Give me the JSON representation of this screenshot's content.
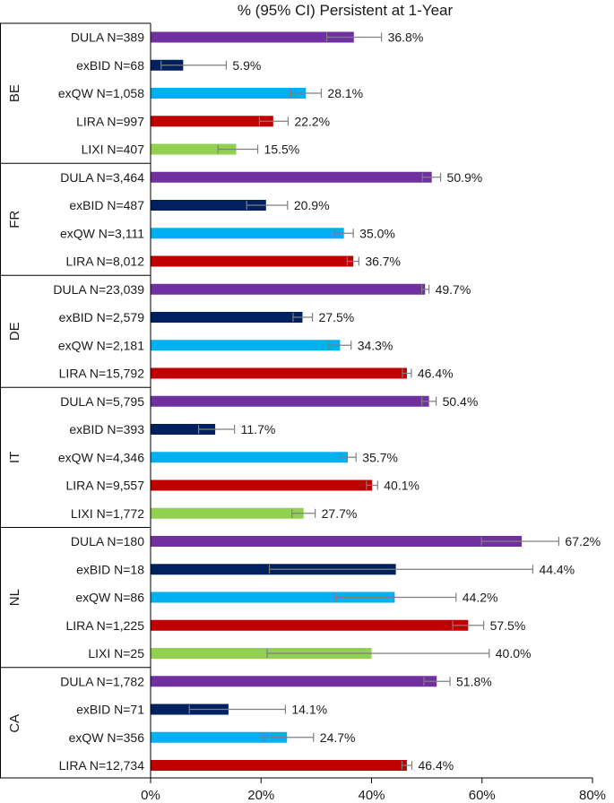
{
  "chart_data": {
    "type": "bar",
    "orientation": "horizontal",
    "title": "% (95% CI) Persistent at 1-Year",
    "xlabel": "",
    "ylabel": "",
    "xlim": [
      0,
      80
    ],
    "x_ticks": [
      0,
      20,
      40,
      60,
      80
    ],
    "x_tick_labels": [
      "0%",
      "20%",
      "40%",
      "60%",
      "80%"
    ],
    "grid": false,
    "legend": "none",
    "colors": {
      "DULA": "#7030a0",
      "exBID": "#002060",
      "exQW": "#00b0f0",
      "LIRA": "#c00000",
      "LIXI": "#92d050",
      "error_bar": "#7f7f7f"
    },
    "groups": [
      {
        "name": "BE",
        "bars": [
          {
            "drug": "DULA",
            "label": "DULA N=389",
            "value": 36.8,
            "value_label": "36.8%",
            "ci": [
              31.9,
              41.8
            ]
          },
          {
            "drug": "exBID",
            "label": "exBID N=68",
            "value": 5.9,
            "value_label": "5.9%",
            "ci": [
              1.9,
              13.7
            ]
          },
          {
            "drug": "exQW",
            "label": "exQW N=1,058",
            "value": 28.1,
            "value_label": "28.1%",
            "ci": [
              25.4,
              30.9
            ]
          },
          {
            "drug": "LIRA",
            "label": "LIRA N=997",
            "value": 22.2,
            "value_label": "22.2%",
            "ci": [
              19.7,
              24.9
            ]
          },
          {
            "drug": "LIXI",
            "label": "LIXI N=407",
            "value": 15.5,
            "value_label": "15.5%",
            "ci": [
              12.2,
              19.4
            ]
          }
        ]
      },
      {
        "name": "FR",
        "bars": [
          {
            "drug": "DULA",
            "label": "DULA N=3,464",
            "value": 50.9,
            "value_label": "50.9%",
            "ci": [
              49.2,
              52.5
            ]
          },
          {
            "drug": "exBID",
            "label": "exBID N=487",
            "value": 20.9,
            "value_label": "20.9%",
            "ci": [
              17.4,
              24.8
            ]
          },
          {
            "drug": "exQW",
            "label": "exQW N=3,111",
            "value": 35.0,
            "value_label": "35.0%",
            "ci": [
              33.3,
              36.7
            ]
          },
          {
            "drug": "LIRA",
            "label": "LIRA N=8,012",
            "value": 36.7,
            "value_label": "36.7%",
            "ci": [
              35.6,
              37.7
            ]
          }
        ]
      },
      {
        "name": "DE",
        "bars": [
          {
            "drug": "DULA",
            "label": "DULA N=23,039",
            "value": 49.7,
            "value_label": "49.7%",
            "ci": [
              49.1,
              50.4
            ]
          },
          {
            "drug": "exBID",
            "label": "exBID N=2,579",
            "value": 27.5,
            "value_label": "27.5%",
            "ci": [
              25.8,
              29.3
            ]
          },
          {
            "drug": "exQW",
            "label": "exQW N=2,181",
            "value": 34.3,
            "value_label": "34.3%",
            "ci": [
              32.3,
              36.3
            ]
          },
          {
            "drug": "LIRA",
            "label": "LIRA N=15,792",
            "value": 46.4,
            "value_label": "46.4%",
            "ci": [
              45.6,
              47.2
            ]
          }
        ]
      },
      {
        "name": "IT",
        "bars": [
          {
            "drug": "DULA",
            "label": "DULA N=5,795",
            "value": 50.4,
            "value_label": "50.4%",
            "ci": [
              49.1,
              51.7
            ]
          },
          {
            "drug": "exBID",
            "label": "exBID N=393",
            "value": 11.7,
            "value_label": "11.7%",
            "ci": [
              8.7,
              15.2
            ]
          },
          {
            "drug": "exQW",
            "label": "exQW N=4,346",
            "value": 35.7,
            "value_label": "35.7%",
            "ci": [
              34.3,
              37.2
            ]
          },
          {
            "drug": "LIRA",
            "label": "LIRA N=9,557",
            "value": 40.1,
            "value_label": "40.1%",
            "ci": [
              39.1,
              41.1
            ]
          },
          {
            "drug": "LIXI",
            "label": "LIXI N=1,772",
            "value": 27.7,
            "value_label": "27.7%",
            "ci": [
              25.6,
              29.8
            ]
          }
        ]
      },
      {
        "name": "NL",
        "bars": [
          {
            "drug": "DULA",
            "label": "DULA N=180",
            "value": 67.2,
            "value_label": "67.2%",
            "ci": [
              59.9,
              73.9
            ]
          },
          {
            "drug": "exBID",
            "label": "exBID N=18",
            "value": 44.4,
            "value_label": "44.4%",
            "ci": [
              21.5,
              69.2
            ]
          },
          {
            "drug": "exQW",
            "label": "exQW N=86",
            "value": 44.2,
            "value_label": "44.2%",
            "ci": [
              33.5,
              55.3
            ]
          },
          {
            "drug": "LIRA",
            "label": "LIRA N=1,225",
            "value": 57.5,
            "value_label": "57.5%",
            "ci": [
              54.7,
              60.3
            ]
          },
          {
            "drug": "LIXI",
            "label": "LIXI N=25",
            "value": 40.0,
            "value_label": "40.0%",
            "ci": [
              21.1,
              61.3
            ]
          }
        ]
      },
      {
        "name": "CA",
        "bars": [
          {
            "drug": "DULA",
            "label": "DULA N=1,782",
            "value": 51.8,
            "value_label": "51.8%",
            "ci": [
              49.5,
              54.2
            ]
          },
          {
            "drug": "exBID",
            "label": "exBID N=71",
            "value": 14.1,
            "value_label": "14.1%",
            "ci": [
              7.0,
              24.4
            ]
          },
          {
            "drug": "exQW",
            "label": "exQW N=356",
            "value": 24.7,
            "value_label": "24.7%",
            "ci": [
              20.3,
              29.5
            ]
          },
          {
            "drug": "LIRA",
            "label": "LIRA N=12,734",
            "value": 46.4,
            "value_label": "46.4%",
            "ci": [
              45.5,
              47.3
            ]
          }
        ]
      }
    ]
  }
}
